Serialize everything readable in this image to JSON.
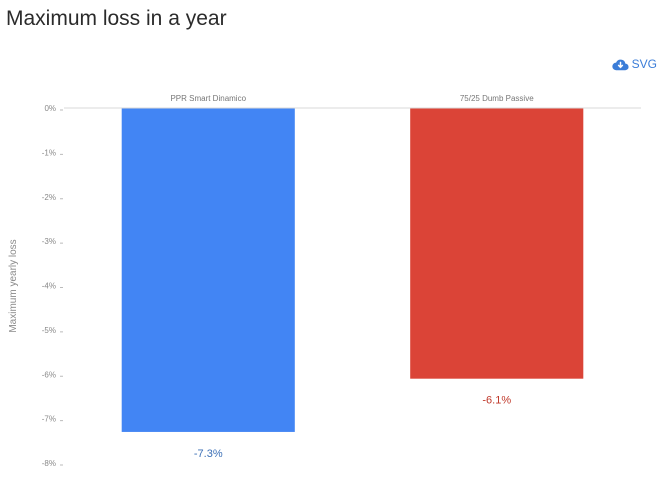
{
  "title": "Maximum loss in a year",
  "export": {
    "label": "SVG",
    "icon": "cloud-download-icon",
    "color": "#3b7dd8"
  },
  "chart_data": {
    "type": "bar",
    "title": "Maximum loss in a year",
    "xlabel": "",
    "ylabel": "Maximum yearly loss",
    "categories": [
      "PPR Smart Dinamico",
      "75/25 Dumb Passive"
    ],
    "values": [
      -7.3,
      -6.1
    ],
    "value_labels": [
      "-7.3%",
      "-6.1%"
    ],
    "colors": [
      "#4285f4",
      "#db4437"
    ],
    "label_colors": [
      "#3b6fb6",
      "#c0392b"
    ],
    "ylim": [
      -8,
      0
    ],
    "yticks": [
      0,
      -1,
      -2,
      -3,
      -4,
      -5,
      -6,
      -7,
      -8
    ],
    "ytick_labels": [
      "0%",
      "-1%",
      "-2%",
      "-3%",
      "-4%",
      "-5%",
      "-6%",
      "-7%",
      "-8%"
    ],
    "category_axis": "top",
    "grid": false,
    "legend": "none"
  }
}
